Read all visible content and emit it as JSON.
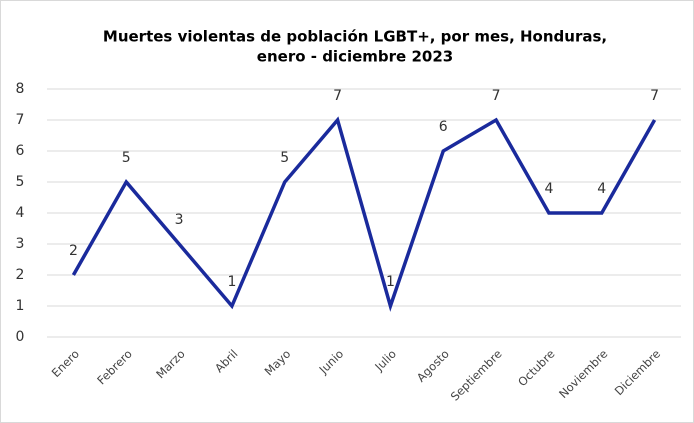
{
  "chart_data": {
    "type": "line",
    "title": [
      "Muertes violentas de población LGBT+, por mes, Honduras,",
      "enero - diciembre 2023"
    ],
    "categories": [
      "Enero",
      "Febrero",
      "Marzo",
      "Abril",
      "Mayo",
      "Junio",
      "Julio",
      "Agosto",
      "Septiembre",
      "Octubre",
      "Noviembre",
      "Diciembre"
    ],
    "values": [
      2,
      5,
      3,
      1,
      5,
      7,
      1,
      6,
      7,
      4,
      4,
      7
    ],
    "color": "#1a2a9c",
    "ylim": [
      0,
      8
    ],
    "yticks": [
      0,
      1,
      2,
      3,
      4,
      5,
      6,
      7,
      8
    ],
    "grid": true
  }
}
